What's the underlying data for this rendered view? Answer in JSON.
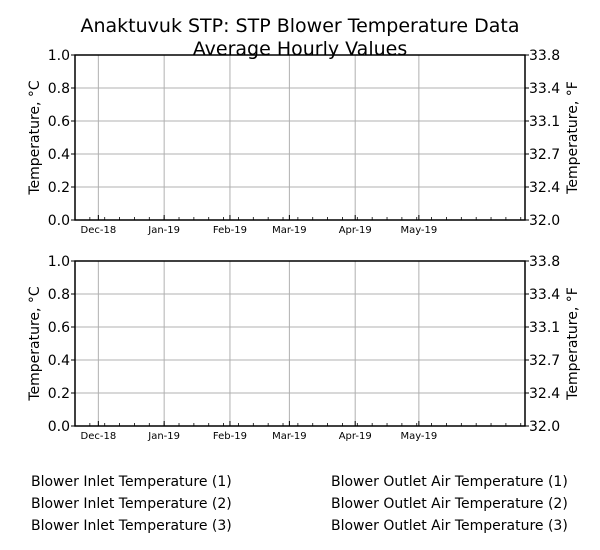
{
  "title": "Anaktuvuk STP: STP Blower Temperature Data",
  "subtitle": "Average Hourly Values",
  "legend": {
    "left": [
      "Blower Inlet Temperature (1)",
      "Blower Inlet Temperature (2)",
      "Blower Inlet Temperature (3)"
    ],
    "right": [
      "Blower Outlet Air Temperature (1)",
      "Blower Outlet Air Temperature (2)",
      "Blower Outlet Air Temperature (3)"
    ]
  },
  "colors": {
    "grid": "#b0b0b0",
    "axis": "#000000",
    "background": "#ffffff"
  },
  "chart_data": [
    {
      "type": "line",
      "ylabel": "Temperature, °C",
      "ylabel_right": "Temperature, °F",
      "ylim": [
        0.0,
        1.0
      ],
      "yticks": [
        "0.0",
        "0.2",
        "0.4",
        "0.6",
        "0.8",
        "1.0"
      ],
      "yticks_right": [
        "32.0",
        "32.4",
        "32.7",
        "33.1",
        "33.4",
        "33.8"
      ],
      "xlim": [
        "2018-11-20",
        "2019-06-20"
      ],
      "xticks": [
        {
          "label": "Dec-18",
          "date": "2018-12-01"
        },
        {
          "label": "Jan-19",
          "date": "2019-01-01"
        },
        {
          "label": "Feb-19",
          "date": "2019-02-01"
        },
        {
          "label": "Mar-19",
          "date": "2019-03-01"
        },
        {
          "label": "Apr-19",
          "date": "2019-04-01"
        },
        {
          "label": "May-19",
          "date": "2019-05-01"
        }
      ],
      "grid": true,
      "series": [
        {
          "name": "Blower Inlet Temperature (1)",
          "values": []
        },
        {
          "name": "Blower Inlet Temperature (2)",
          "values": []
        },
        {
          "name": "Blower Inlet Temperature (3)",
          "values": []
        }
      ]
    },
    {
      "type": "line",
      "ylabel": "Temperature, °C",
      "ylabel_right": "Temperature, °F",
      "ylim": [
        0.0,
        1.0
      ],
      "yticks": [
        "0.0",
        "0.2",
        "0.4",
        "0.6",
        "0.8",
        "1.0"
      ],
      "yticks_right": [
        "32.0",
        "32.4",
        "32.7",
        "33.1",
        "33.4",
        "33.8"
      ],
      "xlim": [
        "2018-11-20",
        "2019-06-20"
      ],
      "xticks": [
        {
          "label": "Dec-18",
          "date": "2018-12-01"
        },
        {
          "label": "Jan-19",
          "date": "2019-01-01"
        },
        {
          "label": "Feb-19",
          "date": "2019-02-01"
        },
        {
          "label": "Mar-19",
          "date": "2019-03-01"
        },
        {
          "label": "Apr-19",
          "date": "2019-04-01"
        },
        {
          "label": "May-19",
          "date": "2019-05-01"
        }
      ],
      "grid": true,
      "series": [
        {
          "name": "Blower Outlet Air Temperature (1)",
          "values": []
        },
        {
          "name": "Blower Outlet Air Temperature (2)",
          "values": []
        },
        {
          "name": "Blower Outlet Air Temperature (3)",
          "values": []
        }
      ]
    }
  ]
}
